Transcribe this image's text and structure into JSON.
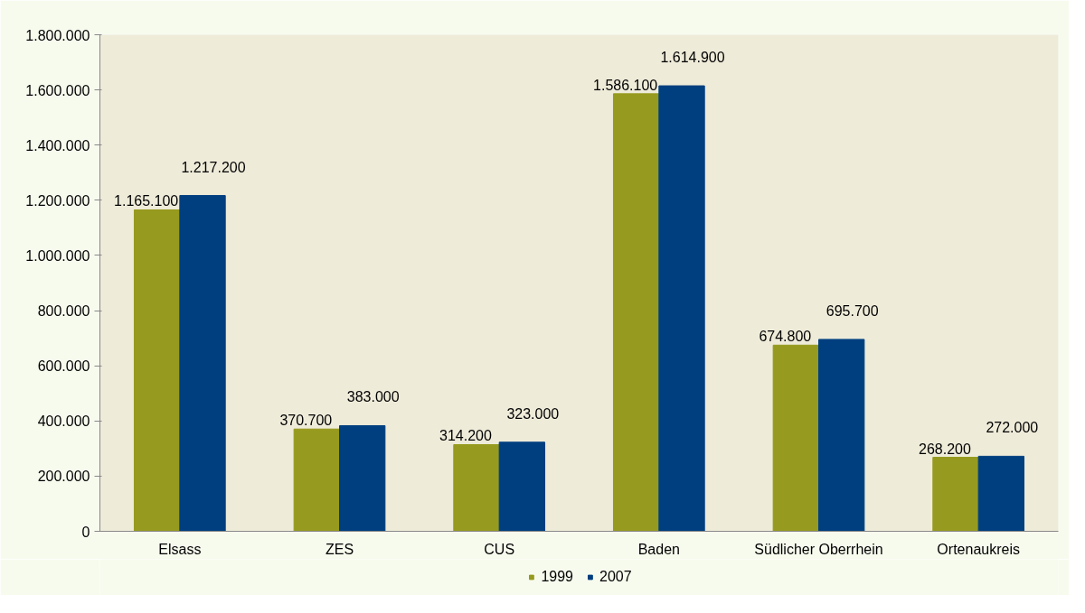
{
  "chart_data": {
    "type": "bar",
    "categories": [
      "Elsass",
      "ZES",
      "CUS",
      "Baden",
      "Südlicher Oberrhein",
      "Ortenaukreis"
    ],
    "series": [
      {
        "name": "1999",
        "color": "#969a1e",
        "values": [
          1165100,
          370700,
          314200,
          1586100,
          674800,
          268200
        ],
        "value_labels": [
          "1.165.100",
          "370.700",
          "314.200",
          "1.586.100",
          "674.800",
          "268.200"
        ]
      },
      {
        "name": "2007",
        "color": "#003f7f",
        "values": [
          1217200,
          383000,
          323000,
          1614900,
          695700,
          272000
        ],
        "value_labels": [
          "1.217.200",
          "383.000",
          "323.000",
          "1.614.900",
          "695.700",
          "272.000"
        ]
      }
    ],
    "ylim": [
      0,
      1800000
    ],
    "yticks": [
      0,
      {
        "value": 200000,
        "label": "200.000"
      },
      {
        "value": 400000,
        "label": "400.000"
      },
      {
        "value": 600000,
        "label": "600.000"
      },
      {
        "value": 800000,
        "label": "800.000"
      },
      {
        "value": 1000000,
        "label": "1.000.000"
      },
      {
        "value": 1200000,
        "label": "1.200.000"
      },
      {
        "value": 1400000,
        "label": "1.400.000"
      },
      {
        "value": 1600000,
        "label": "1.600.000"
      },
      {
        "value": 1800000,
        "label": "1.800.000"
      }
    ],
    "grid": false,
    "legend": "bottom"
  }
}
